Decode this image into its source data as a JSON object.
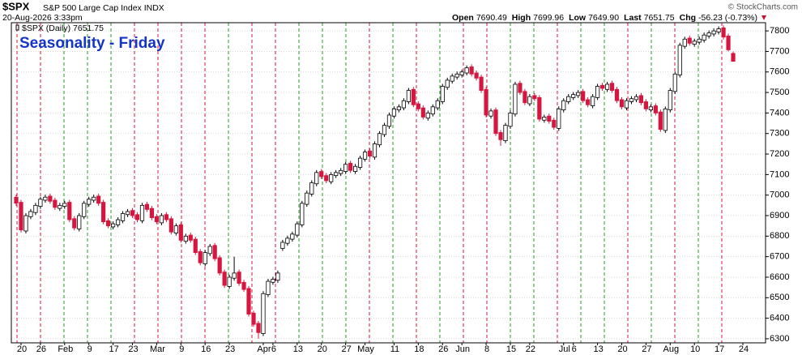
{
  "header": {
    "symbol": "$SPX",
    "name": "S&P 500 Large Cap Index INDX",
    "date": "20-Aug-2026 3:33pm",
    "copyright": "© StockCharts.com",
    "quote": [
      {
        "label": "Open",
        "value": "7690.49"
      },
      {
        "label": "High",
        "value": "7699.96"
      },
      {
        "label": "Low",
        "value": "7649.90"
      },
      {
        "label": "Last",
        "value": "7651.75"
      },
      {
        "label": "Chg",
        "value": "-56.23 (-0.73%)"
      }
    ]
  },
  "chart_data": {
    "type": "candlestick",
    "title": "Seasonality - Friday",
    "legend": "$SPX (Daily) 7651.75",
    "categories": [
      null,
      "20",
      null,
      null,
      null,
      "26",
      null,
      null,
      null,
      null,
      "Feb",
      null,
      null,
      null,
      null,
      "9",
      null,
      null,
      null,
      null,
      "17",
      null,
      null,
      null,
      "23",
      null,
      null,
      null,
      null,
      "Mar",
      null,
      null,
      null,
      null,
      "9",
      null,
      null,
      null,
      null,
      "16",
      null,
      null,
      null,
      null,
      "23",
      null,
      null,
      null,
      null,
      null,
      null,
      "Apr",
      null,
      "6",
      null,
      null,
      null,
      null,
      "13",
      null,
      null,
      null,
      null,
      "20",
      null,
      null,
      null,
      null,
      "27",
      null,
      null,
      null,
      "May",
      null,
      null,
      null,
      null,
      null,
      "11",
      null,
      null,
      null,
      null,
      "18",
      null,
      null,
      null,
      null,
      "26",
      null,
      null,
      null,
      "Jun",
      null,
      null,
      null,
      null,
      "8",
      null,
      null,
      null,
      null,
      "15",
      null,
      null,
      null,
      "22",
      null,
      null,
      null,
      null,
      null,
      null,
      "Jul",
      null,
      "6",
      null,
      null,
      null,
      null,
      "13",
      null,
      null,
      null,
      null,
      "20",
      null,
      null,
      null,
      null,
      "27",
      null,
      null,
      null,
      null,
      "Aug",
      null,
      null,
      null,
      null,
      "10",
      null,
      null,
      null,
      null,
      "17",
      null,
      null,
      null,
      null,
      "24",
      null,
      null,
      null
    ],
    "open": [
      6990,
      6965,
      6825,
      6895,
      6915,
      6945,
      6975,
      6995,
      6975,
      6935,
      6945,
      6965,
      6885,
      6835,
      6895,
      6955,
      6975,
      6995,
      6965,
      6875,
      6845,
      6855,
      6875,
      6905,
      6925,
      6905,
      6875,
      6955,
      6935,
      6895,
      6865,
      6905,
      6885,
      6815,
      6855,
      6775,
      6805,
      6785,
      6725,
      6665,
      6715,
      6755,
      6695,
      6625,
      6555,
      6595,
      6625,
      6575,
      6545,
      6425,
      6375,
      6325,
      6515,
      6575,
      6585,
      6740,
      6765,
      6785,
      6805,
      6855,
      6955,
      7005,
      7055,
      7115,
      7095,
      7065,
      7095,
      7105,
      7115,
      7155,
      7115,
      7135,
      7175,
      7215,
      7185,
      7245,
      7295,
      7335,
      7385,
      7415,
      7425,
      7455,
      7515,
      7445,
      7425,
      7375,
      7395,
      7425,
      7455,
      7525,
      7555,
      7575,
      7585,
      7595,
      7625,
      7595,
      7575,
      7515,
      7385,
      7415,
      7305,
      7265,
      7335,
      7395,
      7545,
      7505,
      7445,
      7485,
      7475,
      7365,
      7385,
      7365,
      7325,
      7415,
      7455,
      7475,
      7485,
      7505,
      7465,
      7435,
      7475,
      7535,
      7515,
      7545,
      7515,
      7465,
      7425,
      7455,
      7465,
      7485,
      7455,
      7415,
      7435,
      7405,
      7315,
      7415,
      7505,
      7585,
      7725,
      7765,
      7735,
      7745,
      7755,
      7775,
      7785,
      7795,
      7815,
      7775,
      7690.49,
      null,
      null,
      null,
      null,
      null
    ],
    "high": [
      7002,
      6977,
      6912,
      6932,
      6962,
      6992,
      7002,
      7007,
      6987,
      6962,
      6972,
      6977,
      6897,
      6912,
      6972,
      6992,
      7002,
      7007,
      6977,
      6887,
      6872,
      6892,
      6922,
      6932,
      6937,
      6917,
      6962,
      6967,
      6947,
      6907,
      6912,
      6917,
      6897,
      6862,
      6867,
      6812,
      6817,
      6797,
      6737,
      6732,
      6762,
      6767,
      6707,
      6637,
      6612,
      6700,
      6637,
      6587,
      6557,
      6437,
      6387,
      6532,
      6592,
      6602,
      6632,
      6782,
      6802,
      6822,
      6872,
      6972,
      7022,
      7072,
      7122,
      7127,
      7107,
      7112,
      7122,
      7132,
      7162,
      7167,
      7152,
      7192,
      7222,
      7227,
      7262,
      7312,
      7352,
      7402,
      7432,
      7442,
      7472,
      7522,
      7527,
      7457,
      7437,
      7412,
      7442,
      7472,
      7542,
      7572,
      7592,
      7602,
      7612,
      7632,
      7637,
      7607,
      7587,
      7527,
      7422,
      7427,
      7317,
      7352,
      7412,
      7552,
      7557,
      7517,
      7492,
      7497,
      7487,
      7392,
      7397,
      7377,
      7432,
      7472,
      7492,
      7502,
      7512,
      7517,
      7477,
      7492,
      7542,
      7547,
      7552,
      7557,
      7527,
      7477,
      7472,
      7482,
      7492,
      7497,
      7467,
      7442,
      7447,
      7417,
      7432,
      7522,
      7602,
      7742,
      7772,
      7777,
      7762,
      7772,
      7792,
      7802,
      7812,
      7822,
      7827,
      7787,
      7699.96,
      null,
      null,
      null,
      null,
      null
    ],
    "low": [
      6948,
      6818,
      6813,
      6883,
      6903,
      6933,
      6963,
      6958,
      6928,
      6923,
      6933,
      6868,
      6828,
      6823,
      6883,
      6943,
      6963,
      6948,
      6858,
      6838,
      6833,
      6843,
      6863,
      6893,
      6888,
      6868,
      6863,
      6918,
      6878,
      6858,
      6853,
      6868,
      6808,
      6803,
      6768,
      6763,
      6768,
      6708,
      6658,
      6653,
      6703,
      6678,
      6608,
      6548,
      6543,
      6583,
      6558,
      6528,
      6408,
      6358,
      6300,
      6313,
      6503,
      6563,
      6573,
      6728,
      6753,
      6773,
      6793,
      6843,
      6943,
      6993,
      7043,
      7078,
      7058,
      7053,
      7083,
      7093,
      7103,
      7108,
      7103,
      7123,
      7163,
      7178,
      7173,
      7233,
      7283,
      7323,
      7373,
      7403,
      7413,
      7443,
      7428,
      7408,
      7368,
      7363,
      7383,
      7413,
      7443,
      7513,
      7543,
      7563,
      7573,
      7583,
      7578,
      7558,
      7498,
      7378,
      7373,
      7288,
      7240,
      7253,
      7323,
      7383,
      7488,
      7438,
      7433,
      7458,
      7358,
      7353,
      7348,
      7318,
      7313,
      7403,
      7443,
      7463,
      7473,
      7448,
      7428,
      7423,
      7463,
      7508,
      7503,
      7498,
      7448,
      7418,
      7413,
      7443,
      7453,
      7438,
      7408,
      7403,
      7388,
      7308,
      7303,
      7403,
      7493,
      7573,
      7713,
      7728,
      7723,
      7733,
      7743,
      7763,
      7773,
      7783,
      7758,
      7700,
      7649.9,
      null,
      null,
      null,
      null,
      null
    ],
    "close": [
      6960,
      6830,
      6900,
      6920,
      6950,
      6980,
      6990,
      6970,
      6940,
      6950,
      6960,
      6880,
      6840,
      6900,
      6960,
      6980,
      6990,
      6960,
      6870,
      6850,
      6860,
      6880,
      6910,
      6920,
      6900,
      6880,
      6950,
      6930,
      6890,
      6870,
      6900,
      6880,
      6820,
      6850,
      6780,
      6800,
      6780,
      6720,
      6670,
      6720,
      6750,
      6690,
      6620,
      6560,
      6600,
      6620,
      6570,
      6540,
      6420,
      6370,
      6330,
      6520,
      6580,
      6590,
      6620,
      6770,
      6790,
      6810,
      6860,
      6960,
      7010,
      7060,
      7110,
      7090,
      7070,
      7100,
      7110,
      7120,
      7150,
      7120,
      7140,
      7180,
      7210,
      7190,
      7250,
      7300,
      7340,
      7390,
      7420,
      7430,
      7460,
      7510,
      7440,
      7420,
      7380,
      7400,
      7430,
      7460,
      7530,
      7560,
      7580,
      7590,
      7600,
      7620,
      7590,
      7570,
      7510,
      7390,
      7410,
      7300,
      7270,
      7340,
      7400,
      7540,
      7500,
      7450,
      7480,
      7470,
      7370,
      7380,
      7360,
      7330,
      7420,
      7460,
      7480,
      7490,
      7500,
      7460,
      7440,
      7480,
      7530,
      7520,
      7540,
      7510,
      7460,
      7430,
      7460,
      7470,
      7480,
      7450,
      7420,
      7430,
      7400,
      7320,
      7420,
      7510,
      7590,
      7730,
      7760,
      7740,
      7750,
      7760,
      7780,
      7790,
      7800,
      7810,
      7770,
      7707.98,
      7651.75,
      null,
      null,
      null,
      null,
      null
    ],
    "ylim": [
      6280,
      7840
    ],
    "yticks": [
      6300,
      6400,
      6500,
      6600,
      6700,
      6800,
      6900,
      7000,
      7100,
      7200,
      7300,
      7400,
      7500,
      7600,
      7700,
      7800
    ],
    "grid": true,
    "up_color": "#000000",
    "down_color": "#d6163f",
    "title_color": "#1534c8"
  }
}
